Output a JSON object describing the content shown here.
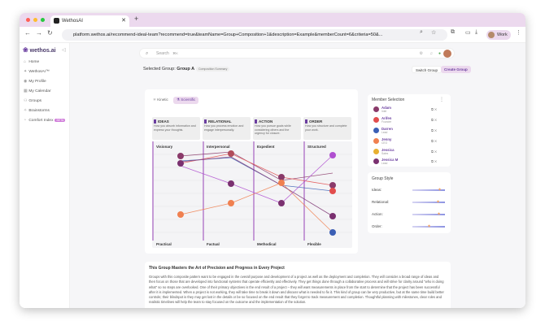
{
  "browser": {
    "tab_title": "WethosAI",
    "url": "platform.wethos.ai/recommend-ideal-team?recommend=true&teamName=Group+Composition+1&description=Example&memberCount=6&criteria=50&...",
    "profile_label": "Work"
  },
  "sidebar": {
    "logo": "wethos.ai",
    "items": [
      {
        "label": "Home",
        "icon": "home-icon"
      },
      {
        "label": "WethosAI™",
        "icon": "sparkle-icon"
      },
      {
        "label": "My Profile",
        "icon": "user-icon"
      },
      {
        "label": "My Calendar",
        "icon": "calendar-icon"
      },
      {
        "label": "Groups",
        "icon": "users-icon"
      },
      {
        "label": "Brainstorms",
        "icon": "bulb-icon"
      },
      {
        "label": "Comfort Index",
        "icon": "gauge-icon",
        "badge": "BETA"
      }
    ]
  },
  "header": {
    "search_placeholder": "Search",
    "search_shortcut": "⌘K",
    "selected_group_prefix": "Selected Group:",
    "selected_group_name": "Group A",
    "composition_badge": "Composition Summary",
    "switch_group": "Switch Group",
    "create_group": "Create Group"
  },
  "view_toggle": {
    "kinetic": "Kinetic",
    "scientific": "Scientific"
  },
  "dimensions": [
    {
      "title": "IDEAS",
      "desc": "How you absorb information and express your thoughts.",
      "top": "Visionary",
      "bottom": "Practical"
    },
    {
      "title": "RELATIONAL",
      "desc": "How you process emotion and engage interpersonally.",
      "top": "Interpersonal",
      "bottom": "Factual"
    },
    {
      "title": "ACTION",
      "desc": "How you pursue goals while considering others and the urgency for closure.",
      "top": "Expedient",
      "bottom": "Methodical"
    },
    {
      "title": "ORDER",
      "desc": "How you structure and complete your work.",
      "top": "Structured",
      "bottom": "Flexible"
    }
  ],
  "members_panel": {
    "title": "Member Selection",
    "members": [
      {
        "name": "Adam",
        "role": "Intel",
        "color": "#8a3a6a"
      },
      {
        "name": "Arifen",
        "role": "Founder",
        "color": "#e24d4d"
      },
      {
        "name": "Darren",
        "role": "Lead",
        "color": "#3b5fb5"
      },
      {
        "name": "Jenny",
        "role": "CEO",
        "color": "#f08050"
      },
      {
        "name": "Jessica",
        "role": "Sales",
        "color": "#e8b030"
      },
      {
        "name": "Jessica M",
        "role": "Lead",
        "color": "#7a3070"
      }
    ]
  },
  "group_style": {
    "title": "Group Style",
    "rows": [
      {
        "label": "Ideas:",
        "value": 0.82
      },
      {
        "label": "Relational:",
        "value": 0.78
      },
      {
        "label": "Action:",
        "value": 0.8
      },
      {
        "label": "Order:",
        "value": 0.5
      }
    ]
  },
  "summary": {
    "title": "This Group Masters the Art of Precision and Progress in Every Project",
    "body": "Groups with this composite pattern want to be engaged in the overall purpose and development of a project as well as the deployment and completion. They will consider a broad range of ideas and then focus on those that are developed into functional systems that operate efficiently and effectively. They get things done through a collaborative process and will strive for clarity around \"who is doing what\" so no steps are overlooked. One of their primary objectives is the end result of a project – they will want measurements in place from the start to determine that the project has been successful after it is implemented. When a project is not working, they will take time to break it down and discuss what is needed to fix it. This kind of group can be very productive, but at the same time build better controls; their blindspot is they may get lost in the details or be so focused on the end result that they forget to track measurement and completion. Thoughtful planning with milestones, clear roles and realistic timelines will help the team to stay focused on the outcome and the implementation of the solution."
  }
}
